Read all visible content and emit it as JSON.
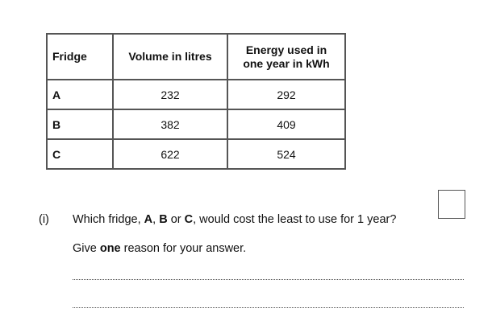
{
  "table": {
    "headers": {
      "fridge": "Fridge",
      "volume": "Volume in litres",
      "energy_line1": "Energy used in",
      "energy_line2": "one year in kWh"
    },
    "rows": [
      {
        "fridge": "A",
        "volume": "232",
        "energy": "292"
      },
      {
        "fridge": "B",
        "volume": "382",
        "energy": "409"
      },
      {
        "fridge": "C",
        "volume": "622",
        "energy": "524"
      }
    ]
  },
  "question": {
    "number": "(i)",
    "text_prefix": "Which fridge, ",
    "opt_a": "A",
    "sep1": ", ",
    "opt_b": "B",
    "sep2": " or ",
    "opt_c": "C",
    "text_suffix": ", would cost the least to use for 1 year?",
    "reason_prefix": "Give ",
    "reason_bold": "one",
    "reason_suffix": " reason for your answer."
  }
}
